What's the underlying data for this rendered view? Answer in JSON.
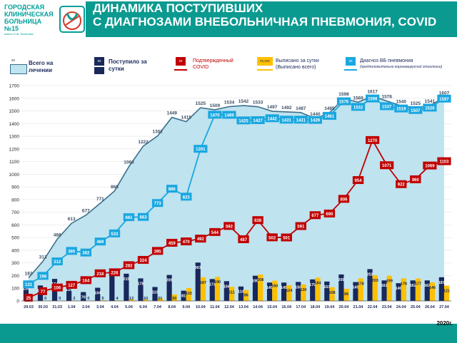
{
  "header": {
    "hospital_name": "ГОРОДСКАЯ КЛИНИЧЕСКАЯ БОЛЬНИЦА №15",
    "hospital_subtitle": "имени О.М. Филатова",
    "title_line1": "ДИНАМИКА ПОСТУПИВШИХ",
    "title_line2": "С ДИАГНОЗАМИ ВНЕБОЛЬНИЧНАЯ ПНЕВМОНИЯ, COVID"
  },
  "legend": {
    "treated": {
      "marker": "xx",
      "label": "Всего на лечении"
    },
    "admitted": {
      "marker": "xx",
      "label": "Поступило за сутки"
    },
    "covid": {
      "marker": "xx",
      "label": "Подтвержденный COVID"
    },
    "discharged": {
      "marker": "xx,xxx",
      "label": "Выписано за сутки (Выписано всего)"
    },
    "pneumonia": {
      "marker": "xx",
      "label": "Диагноз ВБ пневмония",
      "note": "(предположительно коронавирусной этиологии)"
    }
  },
  "year_label": "2020г.",
  "colors": {
    "title_bg": "#0b9a90",
    "area_fill": "#bfe3ef",
    "area_line": "#3a6f8a",
    "admitted": "#18285c",
    "covid": "#c00000",
    "discharged": "#ffc000",
    "pneumonia": "#1aa7e0"
  },
  "chart_data": {
    "type": "combo",
    "categories": [
      "29.03",
      "30.03",
      "31.03",
      "1.04",
      "2.04",
      "3.04",
      "4.04",
      "5.04",
      "6.04",
      "7.04",
      "8.04",
      "9.04",
      "10.04",
      "11.04",
      "12.04",
      "13.04",
      "14.04",
      "15.04",
      "16.04",
      "17.04",
      "18.04",
      "19.04",
      "20.04",
      "21.04",
      "22.04",
      "23.04",
      "24.04",
      "25.04",
      "26.04",
      "27.04"
    ],
    "ylim": [
      0,
      1700
    ],
    "yticks": [
      0,
      100,
      200,
      300,
      400,
      500,
      600,
      700,
      800,
      900,
      1000,
      1100,
      1200,
      1300,
      1400,
      1500,
      1600,
      1700
    ],
    "series": [
      {
        "name": "Всего на лечении",
        "kind": "area",
        "values": [
          183,
          313,
          488,
          613,
          677,
          771,
          868,
          1060,
          1222,
          1302,
          1449,
          1415,
          1525,
          1509,
          1534,
          1542,
          1533,
          1497,
          1492,
          1487,
          1440,
          1485,
          1598,
          1569,
          1617,
          1578,
          1540,
          1525,
          1541,
          1607
        ]
      },
      {
        "name": "Поступило за сутки",
        "kind": "bar",
        "values": [
          139,
          122,
          174,
          129,
          70,
          104,
          255,
          215,
          178,
          110,
          205,
          81,
          303,
          173,
          156,
          114,
          199,
          145,
          145,
          150,
          170,
          153,
          209,
          149,
          251,
          162,
          140,
          162,
          162,
          187
        ]
      },
      {
        "name": "Выписано за сутки",
        "kind": "bar",
        "values": [
          0,
          0,
          0,
          2,
          0,
          5,
          4,
          12,
          10,
          21,
          50,
          102,
          187,
          190,
          111,
          86,
          208,
          160,
          124,
          130,
          184,
          108,
          96,
          178,
          203,
          199,
          178,
          177,
          146,
          121
        ]
      },
      {
        "name": "Подтвержденный COVID",
        "kind": "line",
        "values": [
          25,
          77,
          106,
          127,
          164,
          218,
          226,
          282,
          324,
          395,
          459,
          470,
          492,
          544,
          592,
          487,
          638,
          502,
          501,
          591,
          677,
          690,
          806,
          954,
          1270,
          1071,
          922,
          960,
          1069,
          1103
        ]
      },
      {
        "name": "Диагноз ВБ пневмония",
        "kind": "line",
        "values": [
          131,
          198,
          312,
          395,
          382,
          469,
          533,
          661,
          663,
          773,
          886,
          823,
          1201,
          1470,
          1469,
          1425,
          1427,
          1442,
          1431,
          1431,
          1429,
          1461,
          1576,
          1532,
          1598,
          1537,
          1519,
          1507,
          1526,
          1597
        ]
      }
    ]
  }
}
